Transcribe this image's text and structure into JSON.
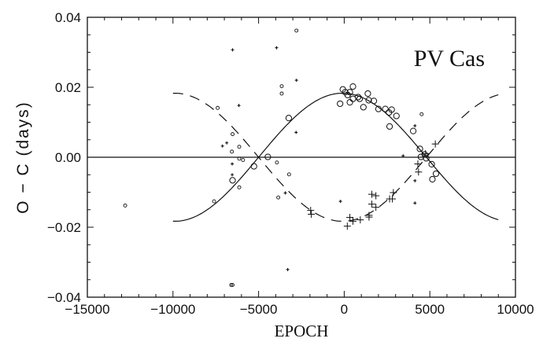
{
  "chart_data": {
    "type": "scatter",
    "title": "PV Cas",
    "xlabel": "EPOCH",
    "ylabel": "O  −  C   (days)",
    "xlim": [
      -15000,
      10000
    ],
    "ylim": [
      -0.04,
      0.04
    ],
    "xticks": [
      -15000,
      -10000,
      -5000,
      0,
      5000,
      10000
    ],
    "xtick_labels": [
      "−15000",
      "−10000",
      "−5000",
      "0",
      "5000",
      "10000"
    ],
    "yticks": [
      -0.04,
      -0.02,
      0.0,
      0.02,
      0.04
    ],
    "ytick_labels": [
      "−0.04",
      "−0.02",
      "0.00",
      "0.02",
      "0.04"
    ],
    "grid": false,
    "reference_line": 0.0,
    "curves": [
      {
        "name": "primary fit",
        "style": "solid",
        "amplitude": 0.0183,
        "period": 19600,
        "phase_epoch": -100,
        "x_range": [
          -10000,
          9000
        ]
      },
      {
        "name": "secondary fit",
        "style": "dashed",
        "amplitude": -0.0183,
        "period": 19600,
        "phase_epoch": -100,
        "x_range": [
          -10000,
          9000
        ]
      }
    ],
    "series": [
      {
        "name": "primary visual",
        "marker": "small-circle",
        "points": [
          [
            -12790,
            -0.0138
          ],
          [
            -7390,
            0.0141
          ],
          [
            -7600,
            -0.0126
          ],
          [
            -6520,
            0.0066
          ],
          [
            -6560,
            0.0016
          ],
          [
            -6130,
            0.003
          ],
          [
            -6130,
            -0.0004
          ],
          [
            -5910,
            -0.0008
          ],
          [
            -6130,
            -0.0086
          ],
          [
            -6520,
            -0.0365
          ],
          [
            -6600,
            -0.0365
          ],
          [
            -3650,
            0.0203
          ],
          [
            -3650,
            0.0182
          ],
          [
            -2790,
            0.0362
          ],
          [
            -3220,
            -0.0049
          ],
          [
            -3930,
            -0.0015
          ],
          [
            -3850,
            -0.0115
          ],
          [
            4520,
            0.0123
          ]
        ]
      },
      {
        "name": "primary photoelectric",
        "marker": "large-circle",
        "points": [
          [
            -6520,
            -0.0066
          ],
          [
            -5270,
            -0.0026
          ],
          [
            -4460,
            0.0001
          ],
          [
            -3240,
            0.0112
          ],
          [
            -240,
            0.0153
          ],
          [
            -80,
            0.0194
          ],
          [
            60,
            0.0186
          ],
          [
            200,
            0.0178
          ],
          [
            330,
            0.0186
          ],
          [
            510,
            0.0202
          ],
          [
            330,
            0.0157
          ],
          [
            510,
            0.0167
          ],
          [
            810,
            0.0172
          ],
          [
            900,
            0.0167
          ],
          [
            1120,
            0.0143
          ],
          [
            1380,
            0.0182
          ],
          [
            1430,
            0.0163
          ],
          [
            1730,
            0.0161
          ],
          [
            2000,
            0.0138
          ],
          [
            2400,
            0.0138
          ],
          [
            2610,
            0.0128
          ],
          [
            2770,
            0.0136
          ],
          [
            3050,
            0.0118
          ],
          [
            2650,
            0.0088
          ],
          [
            4030,
            0.0075
          ],
          [
            4420,
            0.0024
          ],
          [
            4480,
            0.0001
          ],
          [
            4700,
            0.0008
          ],
          [
            4790,
            -0.0003
          ],
          [
            5110,
            -0.002
          ],
          [
            5150,
            -0.0063
          ],
          [
            5360,
            -0.0047
          ]
        ]
      },
      {
        "name": "secondary visual",
        "marker": "small-plus",
        "points": [
          [
            -6520,
            0.0307
          ],
          [
            -6150,
            0.0148
          ],
          [
            -7110,
            0.0032
          ],
          [
            -6860,
            0.0041
          ],
          [
            -6540,
            -0.0019
          ],
          [
            -6540,
            -0.005
          ],
          [
            -3950,
            0.0313
          ],
          [
            -2790,
            0.022
          ],
          [
            -2810,
            0.0071
          ],
          [
            -3440,
            -0.0102
          ],
          [
            -3300,
            -0.0321
          ],
          [
            -220,
            -0.0126
          ],
          [
            3440,
            0.0004
          ],
          [
            4130,
            0.009
          ],
          [
            4130,
            -0.0067
          ],
          [
            4130,
            -0.0131
          ]
        ]
      },
      {
        "name": "secondary photoelectric",
        "marker": "large-plus",
        "points": [
          [
            -1960,
            -0.0152
          ],
          [
            -1920,
            -0.0163
          ],
          [
            180,
            -0.0197
          ],
          [
            330,
            -0.0172
          ],
          [
            510,
            -0.0183
          ],
          [
            940,
            -0.0179
          ],
          [
            1450,
            -0.0166
          ],
          [
            1450,
            -0.0171
          ],
          [
            1610,
            -0.0106
          ],
          [
            1850,
            -0.011
          ],
          [
            1610,
            -0.0134
          ],
          [
            1850,
            -0.0143
          ],
          [
            2650,
            -0.0119
          ],
          [
            2810,
            -0.0119
          ],
          [
            2870,
            -0.0101
          ],
          [
            4300,
            -0.0019
          ],
          [
            4340,
            -0.0042
          ],
          [
            4750,
            0.001
          ],
          [
            5320,
            0.0038
          ]
        ]
      }
    ]
  }
}
